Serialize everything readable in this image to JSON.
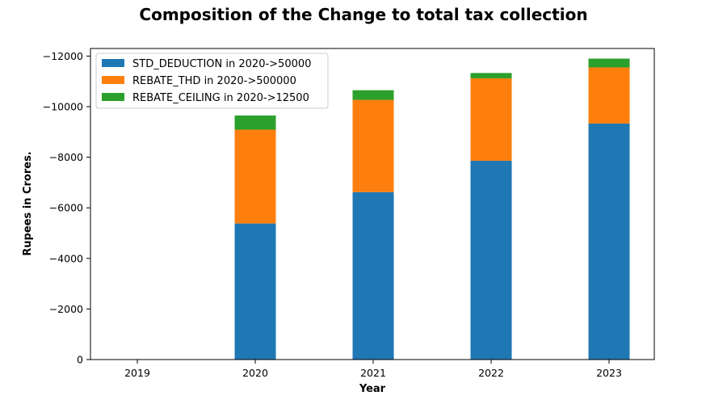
{
  "chart_data": {
    "type": "bar",
    "stacked": true,
    "title": "Composition of the Change to total tax collection",
    "xlabel": "Year",
    "ylabel": "Rupees in Crores.",
    "categories": [
      "2019",
      "2020",
      "2021",
      "2022",
      "2023"
    ],
    "yticks": [
      0,
      -2000,
      -4000,
      -6000,
      -8000,
      -10000,
      -12000
    ],
    "ytick_labels": [
      "0",
      "−2000",
      "−4000",
      "−6000",
      "−8000",
      "−10000",
      "−12000"
    ],
    "ylim": [
      0,
      -12300
    ],
    "y_inverted": true,
    "grid": false,
    "legend_position": "top-left",
    "series": [
      {
        "name": "STD_DEDUCTION in 2020->50000",
        "color": "#1f77b4",
        "values": [
          0,
          -5380,
          -6620,
          -7860,
          -9330
        ]
      },
      {
        "name": "REBATE_THD in 2020->500000",
        "color": "#ff7f0e",
        "values": [
          0,
          -3710,
          -3650,
          -3260,
          -2220
        ]
      },
      {
        "name": "REBATE_CEILING in 2020->12500",
        "color": "#2ca02c",
        "values": [
          0,
          -560,
          -380,
          -210,
          -350
        ]
      }
    ]
  }
}
